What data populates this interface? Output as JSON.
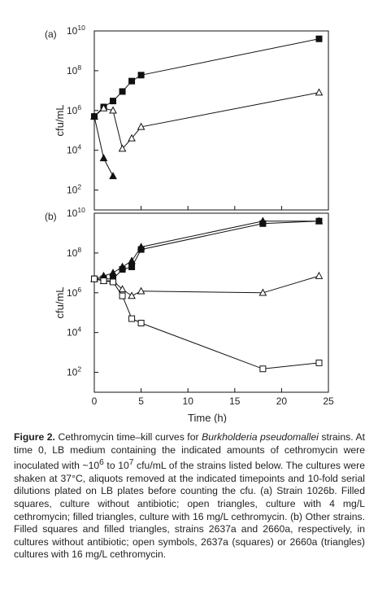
{
  "chart_data": [
    {
      "type": "line",
      "panel_label": "(a)",
      "ylabel": "cfu/mL",
      "yscale": "log",
      "ylim": [
        10,
        10000000000
      ],
      "yticks": [
        {
          "value": 10000000000,
          "base": "10",
          "exp": "10"
        },
        {
          "value": 100000000,
          "base": "10",
          "exp": "8"
        },
        {
          "value": 1000000,
          "base": "10",
          "exp": "6"
        },
        {
          "value": 10000,
          "base": "10",
          "exp": "4"
        },
        {
          "value": 100,
          "base": "10",
          "exp": "2"
        }
      ],
      "xlim": [
        0,
        25
      ],
      "series": [
        {
          "marker": "filled-square",
          "x": [
            0,
            1,
            2,
            3,
            4,
            5,
            24
          ],
          "y": [
            500000,
            1500000,
            3000000,
            9000000,
            30000000,
            60000000,
            4000000000
          ]
        },
        {
          "marker": "open-triangle",
          "x": [
            0,
            1,
            2,
            3,
            4,
            5,
            24
          ],
          "y": [
            500000,
            1300000,
            1000000,
            12000,
            40000,
            150000,
            8000000
          ]
        },
        {
          "marker": "filled-triangle",
          "x": [
            0,
            1,
            2
          ],
          "y": [
            500000,
            4000,
            500
          ]
        }
      ]
    },
    {
      "type": "line",
      "panel_label": "(b)",
      "ylabel": "cfu/mL",
      "xlabel": "Time (h)",
      "yscale": "log",
      "ylim": [
        10,
        10000000000
      ],
      "yticks": [
        {
          "value": 10000000000,
          "base": "10",
          "exp": "10"
        },
        {
          "value": 100000000,
          "base": "10",
          "exp": "8"
        },
        {
          "value": 1000000,
          "base": "10",
          "exp": "6"
        },
        {
          "value": 10000,
          "base": "10",
          "exp": "4"
        },
        {
          "value": 100,
          "base": "10",
          "exp": "2"
        }
      ],
      "xlim": [
        0,
        25
      ],
      "xticks": [
        "0",
        "5",
        "10",
        "15",
        "20",
        "25"
      ],
      "series": [
        {
          "marker": "filled-square",
          "x": [
            0,
            1,
            2,
            3,
            4,
            5,
            18,
            24
          ],
          "y": [
            5000000,
            5000000,
            5000000,
            15000000,
            20000000,
            150000000,
            3000000000,
            4000000000
          ]
        },
        {
          "marker": "filled-triangle",
          "x": [
            0,
            1,
            2,
            3,
            4,
            5,
            18,
            24
          ],
          "y": [
            5000000,
            7000000,
            10000000,
            20000000,
            40000000,
            200000000,
            4000000000,
            4000000000
          ]
        },
        {
          "marker": "open-triangle",
          "x": [
            0,
            1,
            2,
            3,
            4,
            5,
            18,
            24
          ],
          "y": [
            5000000,
            4000000,
            4000000,
            1500000,
            700000,
            1200000,
            1000000,
            7000000
          ]
        },
        {
          "marker": "open-square",
          "x": [
            0,
            1,
            2,
            3,
            4,
            5,
            18,
            24
          ],
          "y": [
            5000000,
            4000000,
            3500000,
            700000,
            50000,
            30000,
            150,
            300
          ]
        }
      ]
    }
  ],
  "caption": {
    "figure_label": "Figure 2.",
    "seg1": " Cethromycin time–kill curves for ",
    "species": "Burkholderia pseudomallei",
    "seg2": " strains. At time 0, LB medium containing the indicated amounts of cethromycin were inoculated with ~10",
    "sup1": "6",
    "seg3": " to 10",
    "sup2": "7",
    "seg4": " cfu/mL of the strains listed below. The cultures were shaken at 37°C, aliquots removed at the indicated timepoints and 10-fold serial dilutions plated on LB plates before counting the cfu. (a) Strain 1026b. Filled squares, culture without antibiotic; open triangles, culture with 4 mg/L cethromycin; filled triangles, culture with 16 mg/L cethromycin. (b) Other strains. Filled squares and filled triangles, strains 2637a and 2660a, respectively, in cultures without antibiotic; open symbols, 2637a (squares) or 2660a (triangles) cultures with 16 mg/L cethromycin."
  }
}
